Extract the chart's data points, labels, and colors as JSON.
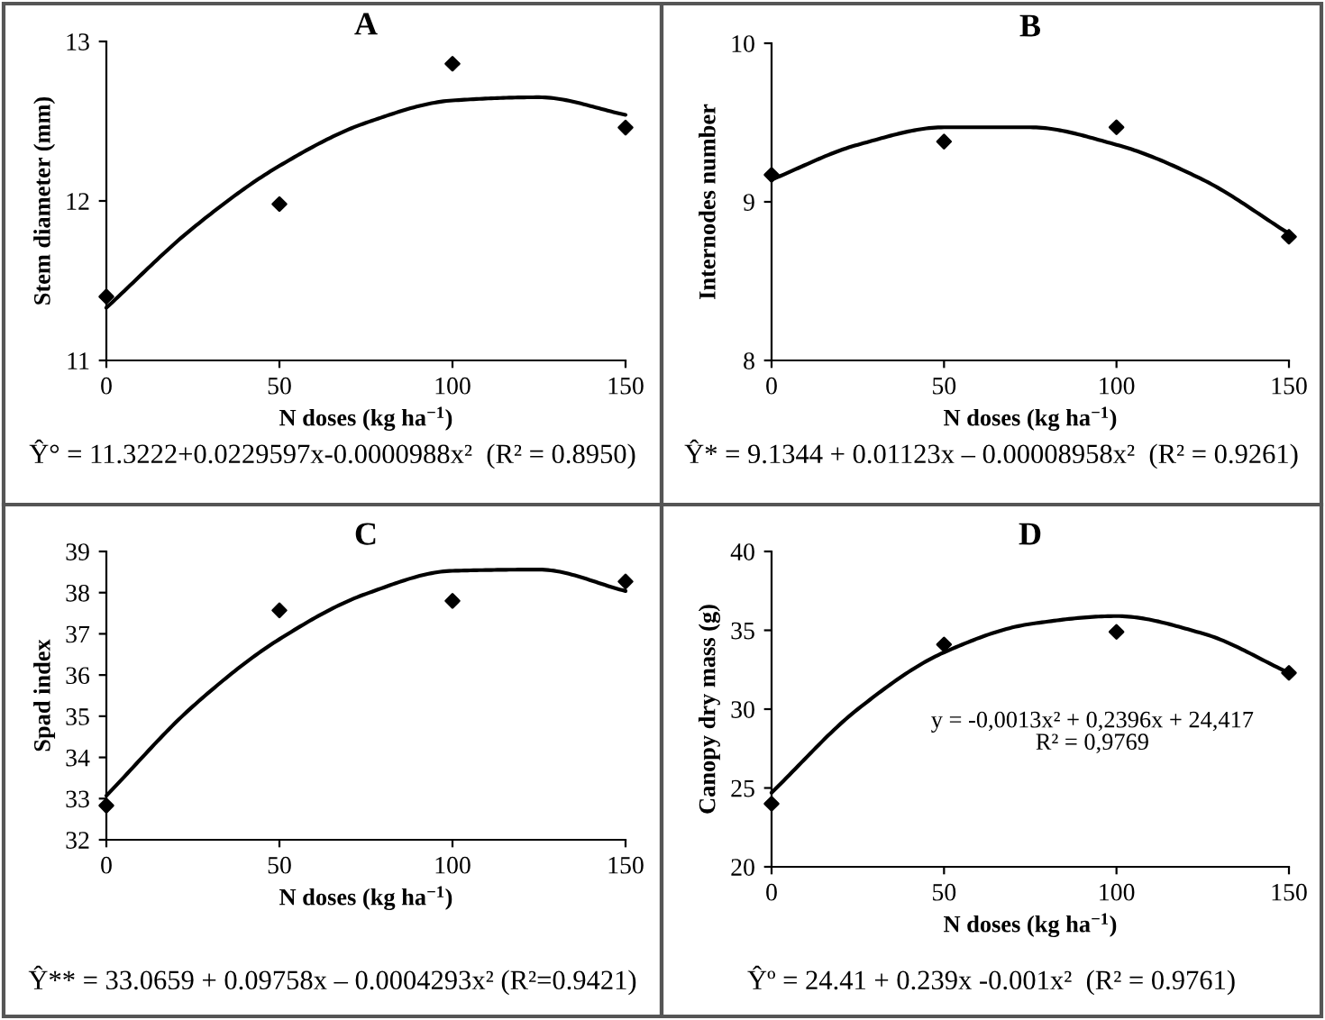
{
  "chart_data": [
    {
      "type": "scatter",
      "title": "A",
      "xlabel": "N doses (kg ha$^{−1}$)",
      "ylabel": "Stem diameter (mm)",
      "xlim": [
        0,
        150
      ],
      "ylim": [
        11,
        13
      ],
      "xticks": [
        0,
        50,
        100,
        150
      ],
      "yticks": [
        11,
        12,
        13
      ],
      "series": [
        {
          "marker": "diamond",
          "color": "#000000",
          "x": [
            0,
            50,
            100,
            150
          ],
          "values": [
            11.4,
            11.98,
            12.86,
            12.46
          ]
        },
        {
          "type": "line",
          "color": "#000000",
          "x": [
            0,
            25,
            50,
            75,
            100,
            125,
            150
          ],
          "values": [
            11.33,
            11.83,
            12.22,
            12.49,
            12.63,
            12.65,
            12.54
          ]
        }
      ],
      "annotations": [
        "Ŷ° = 11.3222+0.0229597x-0.0000988x²  (R² = 0.8950)"
      ]
    },
    {
      "type": "scatter",
      "title": "B",
      "xlabel": "N doses (kg ha$^{−1}$)",
      "ylabel": "Internodes number",
      "xlim": [
        0,
        150
      ],
      "ylim": [
        8,
        10
      ],
      "xticks": [
        0,
        50,
        100,
        150
      ],
      "yticks": [
        8,
        9,
        10
      ],
      "series": [
        {
          "marker": "diamond",
          "color": "#000000",
          "x": [
            0,
            50,
            100,
            150
          ],
          "values": [
            9.17,
            9.38,
            9.47,
            8.78
          ]
        },
        {
          "type": "line",
          "color": "#000000",
          "x": [
            0,
            25,
            50,
            75,
            100,
            125,
            150
          ],
          "values": [
            9.14,
            9.36,
            9.47,
            9.47,
            9.36,
            9.14,
            8.8
          ]
        }
      ],
      "annotations": [
        "Ŷ* = 9.1344 + 0.01123x – 0.00008958x²  (R² = 0.9261)"
      ]
    },
    {
      "type": "scatter",
      "title": "C",
      "xlabel": "N doses (kg ha$^{−1}$)",
      "ylabel": "Spad index",
      "xlim": [
        0,
        150
      ],
      "ylim": [
        32,
        39
      ],
      "xticks": [
        0,
        50,
        100,
        150
      ],
      "yticks": [
        32,
        33,
        34,
        35,
        36,
        37,
        38,
        39
      ],
      "series": [
        {
          "marker": "diamond",
          "color": "#000000",
          "x": [
            0,
            50,
            100,
            150
          ],
          "values": [
            32.83,
            37.57,
            37.8,
            38.27
          ]
        },
        {
          "type": "line",
          "color": "#000000",
          "x": [
            0,
            25,
            50,
            75,
            100,
            125,
            150
          ],
          "values": [
            33.07,
            35.24,
            36.87,
            37.97,
            38.53,
            38.56,
            38.04
          ]
        }
      ],
      "annotations": [
        "Ŷ** = 33.0659 + 0.09758x – 0.0004293x² (R²=0.9421)"
      ]
    },
    {
      "type": "scatter",
      "title": "D",
      "xlabel": "N doses (kg ha$^{−1}$)",
      "ylabel": "Canopy dry mass (g)",
      "xlim": [
        0,
        150
      ],
      "ylim": [
        20,
        40
      ],
      "xticks": [
        0,
        50,
        100,
        150
      ],
      "yticks": [
        20,
        25,
        30,
        35,
        40
      ],
      "series": [
        {
          "marker": "diamond",
          "color": "#000000",
          "x": [
            0,
            50,
            100,
            150
          ],
          "values": [
            24.0,
            34.1,
            34.9,
            32.3
          ]
        },
        {
          "type": "line",
          "color": "#000000",
          "x": [
            0,
            25,
            50,
            75,
            100,
            125,
            150
          ],
          "values": [
            24.7,
            30.0,
            33.6,
            35.4,
            35.9,
            34.8,
            32.3
          ]
        }
      ],
      "annotations": [
        "Ŷº = 24.41 + 0.239x -0.001x²  (R² = 0.9761)",
        "y = -0,0013x² + 0,2396x + 24,417",
        "R² = 0,9769"
      ]
    }
  ]
}
